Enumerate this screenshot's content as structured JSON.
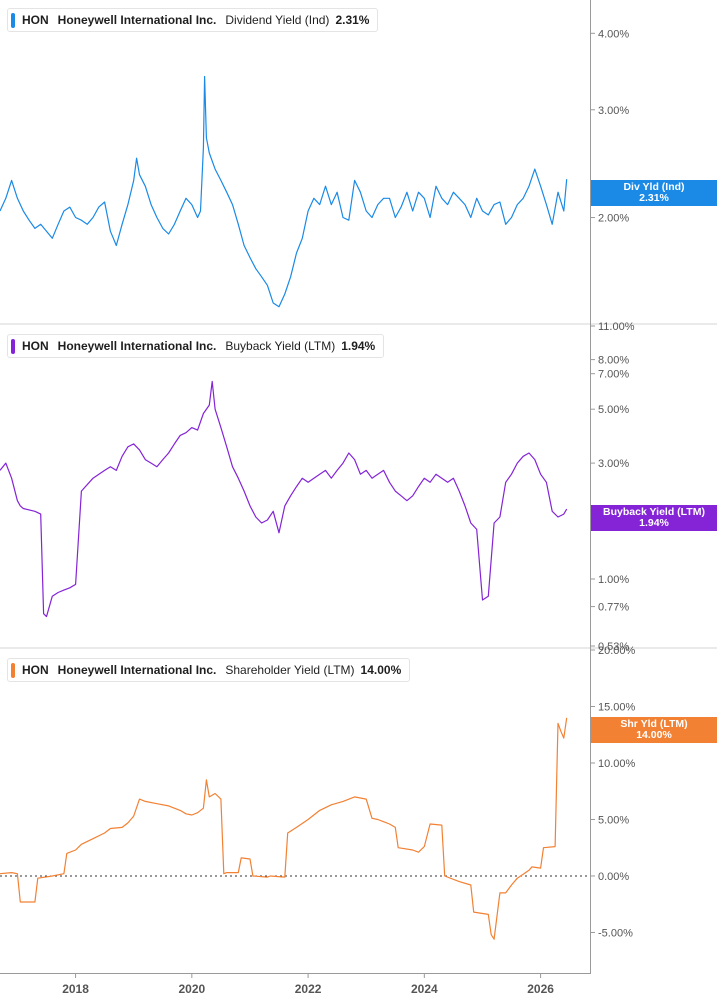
{
  "chart_data": [
    {
      "type": "line",
      "ticker": "HON",
      "company": "Honeywell International Inc.",
      "metric": "Dividend Yield (Ind)",
      "current_value": "2.31%",
      "tag_label": "Div Yld (Ind)",
      "tag_value": "2.31%",
      "color": "#1a8ae6",
      "scale": "log",
      "ylim": [
        1.35,
        4.5
      ],
      "y_ticks": [
        {
          "value": 4.0,
          "label": "4.00%"
        },
        {
          "value": 3.0,
          "label": "3.00%"
        },
        {
          "value": 2.0,
          "label": "2.00%"
        }
      ],
      "series": [
        {
          "x": [
            2016.7,
            2016.8,
            2016.9,
            2017.0,
            2017.1,
            2017.2,
            2017.3,
            2017.4,
            2017.5,
            2017.6,
            2017.7,
            2017.8,
            2017.9,
            2018.0,
            2018.1,
            2018.2,
            2018.3,
            2018.4,
            2018.5,
            2018.6,
            2018.7,
            2018.8,
            2018.9,
            2019.0,
            2019.05,
            2019.1,
            2019.2,
            2019.3,
            2019.4,
            2019.5,
            2019.6,
            2019.7,
            2019.8,
            2019.9,
            2020.0,
            2020.1,
            2020.15,
            2020.2,
            2020.22,
            2020.25,
            2020.3,
            2020.4,
            2020.5,
            2020.6,
            2020.7,
            2020.8,
            2020.9,
            2021.0,
            2021.1,
            2021.2,
            2021.3,
            2021.4,
            2021.5,
            2021.6,
            2021.7,
            2021.8,
            2021.9,
            2022.0,
            2022.1,
            2022.2,
            2022.3,
            2022.4,
            2022.5,
            2022.6,
            2022.7,
            2022.8,
            2022.9,
            2023.0,
            2023.1,
            2023.2,
            2023.3,
            2023.4,
            2023.5,
            2023.6,
            2023.7,
            2023.8,
            2023.9,
            2024.0,
            2024.1,
            2024.2,
            2024.3,
            2024.4,
            2024.5,
            2024.6,
            2024.7,
            2024.8,
            2024.9,
            2025.0,
            2025.1,
            2025.2,
            2025.3,
            2025.4,
            2025.5,
            2025.6,
            2025.7,
            2025.8,
            2025.9,
            2026.0,
            2026.1,
            2026.2,
            2026.3,
            2026.4,
            2026.45
          ],
          "y": [
            2.05,
            2.15,
            2.3,
            2.15,
            2.05,
            1.98,
            1.92,
            1.95,
            1.9,
            1.85,
            1.95,
            2.05,
            2.08,
            2.0,
            1.98,
            1.95,
            2.0,
            2.08,
            2.12,
            1.9,
            1.8,
            1.95,
            2.1,
            2.3,
            2.5,
            2.35,
            2.25,
            2.1,
            2.0,
            1.92,
            1.88,
            1.95,
            2.05,
            2.15,
            2.1,
            2.0,
            2.05,
            2.6,
            3.4,
            2.7,
            2.55,
            2.4,
            2.3,
            2.2,
            2.1,
            1.95,
            1.8,
            1.72,
            1.65,
            1.6,
            1.55,
            1.45,
            1.43,
            1.5,
            1.6,
            1.75,
            1.85,
            2.05,
            2.15,
            2.1,
            2.25,
            2.1,
            2.2,
            2.0,
            1.98,
            2.3,
            2.2,
            2.05,
            2.0,
            2.1,
            2.15,
            2.15,
            2.0,
            2.08,
            2.2,
            2.05,
            2.2,
            2.15,
            2.0,
            2.25,
            2.15,
            2.1,
            2.2,
            2.15,
            2.1,
            2.0,
            2.15,
            2.05,
            2.02,
            2.1,
            2.12,
            1.95,
            2.0,
            2.1,
            2.15,
            2.25,
            2.4,
            2.25,
            2.1,
            1.95,
            2.2,
            2.05,
            2.31
          ]
        }
      ]
    },
    {
      "type": "line",
      "ticker": "HON",
      "company": "Honeywell International Inc.",
      "metric": "Buyback Yield (LTM)",
      "current_value": "1.94%",
      "tag_label": "Buyback Yield (LTM)",
      "tag_value": "1.94%",
      "color": "#8424d6",
      "scale": "log",
      "ylim": [
        0.53,
        11.0
      ],
      "y_ticks": [
        {
          "value": 11.0,
          "label": "11.00%"
        },
        {
          "value": 8.0,
          "label": "8.00%"
        },
        {
          "value": 7.0,
          "label": "7.00%"
        },
        {
          "value": 5.0,
          "label": "5.00%"
        },
        {
          "value": 3.0,
          "label": "3.00%"
        },
        {
          "value": 1.0,
          "label": "1.00%"
        },
        {
          "value": 0.77,
          "label": "0.77%"
        },
        {
          "value": 0.53,
          "label": "0.53%"
        }
      ],
      "series": [
        {
          "x": [
            2016.7,
            2016.8,
            2016.9,
            2017.0,
            2017.05,
            2017.1,
            2017.3,
            2017.4,
            2017.45,
            2017.5,
            2017.6,
            2017.7,
            2017.8,
            2017.9,
            2018.0,
            2018.1,
            2018.3,
            2018.5,
            2018.6,
            2018.7,
            2018.8,
            2018.9,
            2019.0,
            2019.1,
            2019.2,
            2019.3,
            2019.4,
            2019.5,
            2019.6,
            2019.7,
            2019.8,
            2019.9,
            2020.0,
            2020.1,
            2020.2,
            2020.3,
            2020.35,
            2020.4,
            2020.5,
            2020.6,
            2020.7,
            2020.8,
            2020.9,
            2021.0,
            2021.1,
            2021.2,
            2021.3,
            2021.4,
            2021.5,
            2021.6,
            2021.7,
            2021.8,
            2021.9,
            2022.0,
            2022.1,
            2022.2,
            2022.3,
            2022.4,
            2022.5,
            2022.6,
            2022.7,
            2022.8,
            2022.9,
            2023.0,
            2023.1,
            2023.2,
            2023.3,
            2023.4,
            2023.5,
            2023.6,
            2023.7,
            2023.8,
            2023.9,
            2024.0,
            2024.1,
            2024.2,
            2024.3,
            2024.4,
            2024.5,
            2024.6,
            2024.7,
            2024.8,
            2024.9,
            2025.0,
            2025.1,
            2025.2,
            2025.3,
            2025.4,
            2025.5,
            2025.6,
            2025.7,
            2025.8,
            2025.9,
            2026.0,
            2026.1,
            2026.2,
            2026.3,
            2026.4,
            2026.45
          ],
          "y": [
            2.8,
            3.0,
            2.6,
            2.1,
            2.0,
            1.95,
            1.9,
            1.85,
            0.72,
            0.7,
            0.85,
            0.88,
            0.9,
            0.92,
            0.95,
            2.3,
            2.6,
            2.8,
            2.9,
            2.8,
            3.2,
            3.5,
            3.6,
            3.4,
            3.1,
            3.0,
            2.9,
            3.1,
            3.3,
            3.6,
            3.9,
            4.0,
            4.2,
            4.1,
            4.8,
            5.2,
            6.5,
            5.0,
            4.2,
            3.5,
            2.9,
            2.6,
            2.3,
            2.0,
            1.8,
            1.7,
            1.75,
            1.9,
            1.55,
            2.0,
            2.2,
            2.4,
            2.6,
            2.5,
            2.6,
            2.7,
            2.8,
            2.6,
            2.8,
            3.0,
            3.3,
            3.1,
            2.7,
            2.8,
            2.6,
            2.7,
            2.8,
            2.5,
            2.3,
            2.2,
            2.1,
            2.2,
            2.4,
            2.6,
            2.5,
            2.7,
            2.6,
            2.5,
            2.6,
            2.3,
            2.0,
            1.7,
            1.6,
            0.82,
            0.85,
            1.7,
            1.8,
            2.5,
            2.7,
            3.0,
            3.2,
            3.3,
            3.1,
            2.7,
            2.5,
            1.9,
            1.8,
            1.85,
            1.94
          ]
        }
      ]
    },
    {
      "type": "line",
      "ticker": "HON",
      "company": "Honeywell International Inc.",
      "metric": "Shareholder Yield (LTM)",
      "current_value": "14.00%",
      "tag_label": "Shr Yld (LTM)",
      "tag_value": "14.00%",
      "color": "#f28134",
      "scale": "linear",
      "ylim": [
        -8.5,
        20.0
      ],
      "y_ticks": [
        {
          "value": 20.0,
          "label": "20.00%"
        },
        {
          "value": 15.0,
          "label": "15.00%"
        },
        {
          "value": 10.0,
          "label": "10.00%"
        },
        {
          "value": 5.0,
          "label": "5.00%"
        },
        {
          "value": 0.0,
          "label": "0.00%"
        },
        {
          "value": -5.0,
          "label": "-5.00%"
        }
      ],
      "zero_line": 0,
      "series": [
        {
          "x": [
            2016.7,
            2016.9,
            2017.0,
            2017.05,
            2017.3,
            2017.35,
            2017.6,
            2017.8,
            2017.85,
            2018.0,
            2018.1,
            2018.3,
            2018.5,
            2018.6,
            2018.8,
            2018.9,
            2019.0,
            2019.1,
            2019.2,
            2019.4,
            2019.6,
            2019.8,
            2019.9,
            2020.0,
            2020.1,
            2020.2,
            2020.25,
            2020.3,
            2020.4,
            2020.5,
            2020.55,
            2020.6,
            2020.8,
            2020.85,
            2021.0,
            2021.05,
            2021.3,
            2021.35,
            2021.6,
            2021.65,
            2021.8,
            2022.0,
            2022.2,
            2022.4,
            2022.6,
            2022.8,
            2023.0,
            2023.1,
            2023.2,
            2023.3,
            2023.4,
            2023.5,
            2023.55,
            2023.8,
            2023.9,
            2024.0,
            2024.1,
            2024.3,
            2024.35,
            2024.6,
            2024.8,
            2024.85,
            2025.1,
            2025.15,
            2025.2,
            2025.3,
            2025.4,
            2025.5,
            2025.6,
            2025.8,
            2025.85,
            2026.0,
            2026.05,
            2026.25,
            2026.3,
            2026.35,
            2026.4,
            2026.45
          ],
          "y": [
            0.2,
            0.3,
            0.2,
            -2.3,
            -2.3,
            -0.2,
            0.0,
            0.2,
            2.0,
            2.3,
            2.8,
            3.3,
            3.8,
            4.2,
            4.3,
            4.7,
            5.3,
            6.8,
            6.6,
            6.4,
            6.2,
            5.8,
            5.5,
            5.4,
            5.6,
            6.0,
            8.5,
            7.0,
            7.3,
            6.8,
            0.2,
            0.3,
            0.3,
            1.6,
            1.5,
            0.0,
            -0.1,
            0.0,
            -0.1,
            3.8,
            4.3,
            5.0,
            5.8,
            6.3,
            6.6,
            7.0,
            6.8,
            5.1,
            5.0,
            4.8,
            4.6,
            4.3,
            2.5,
            2.3,
            2.1,
            2.6,
            4.6,
            4.5,
            0.0,
            -0.5,
            -0.8,
            -3.2,
            -3.4,
            -5.2,
            -5.6,
            -1.5,
            -1.5,
            -0.8,
            -0.2,
            0.5,
            0.8,
            0.7,
            2.5,
            2.6,
            13.5,
            12.8,
            12.2,
            14.0
          ]
        }
      ]
    }
  ],
  "x_axis": {
    "xlim": [
      2016.7,
      2026.85
    ],
    "ticks": [
      {
        "value": 2018,
        "label": "2018"
      },
      {
        "value": 2020,
        "label": "2020"
      },
      {
        "value": 2022,
        "label": "2022"
      },
      {
        "value": 2024,
        "label": "2024"
      },
      {
        "value": 2026,
        "label": "2026"
      }
    ]
  }
}
